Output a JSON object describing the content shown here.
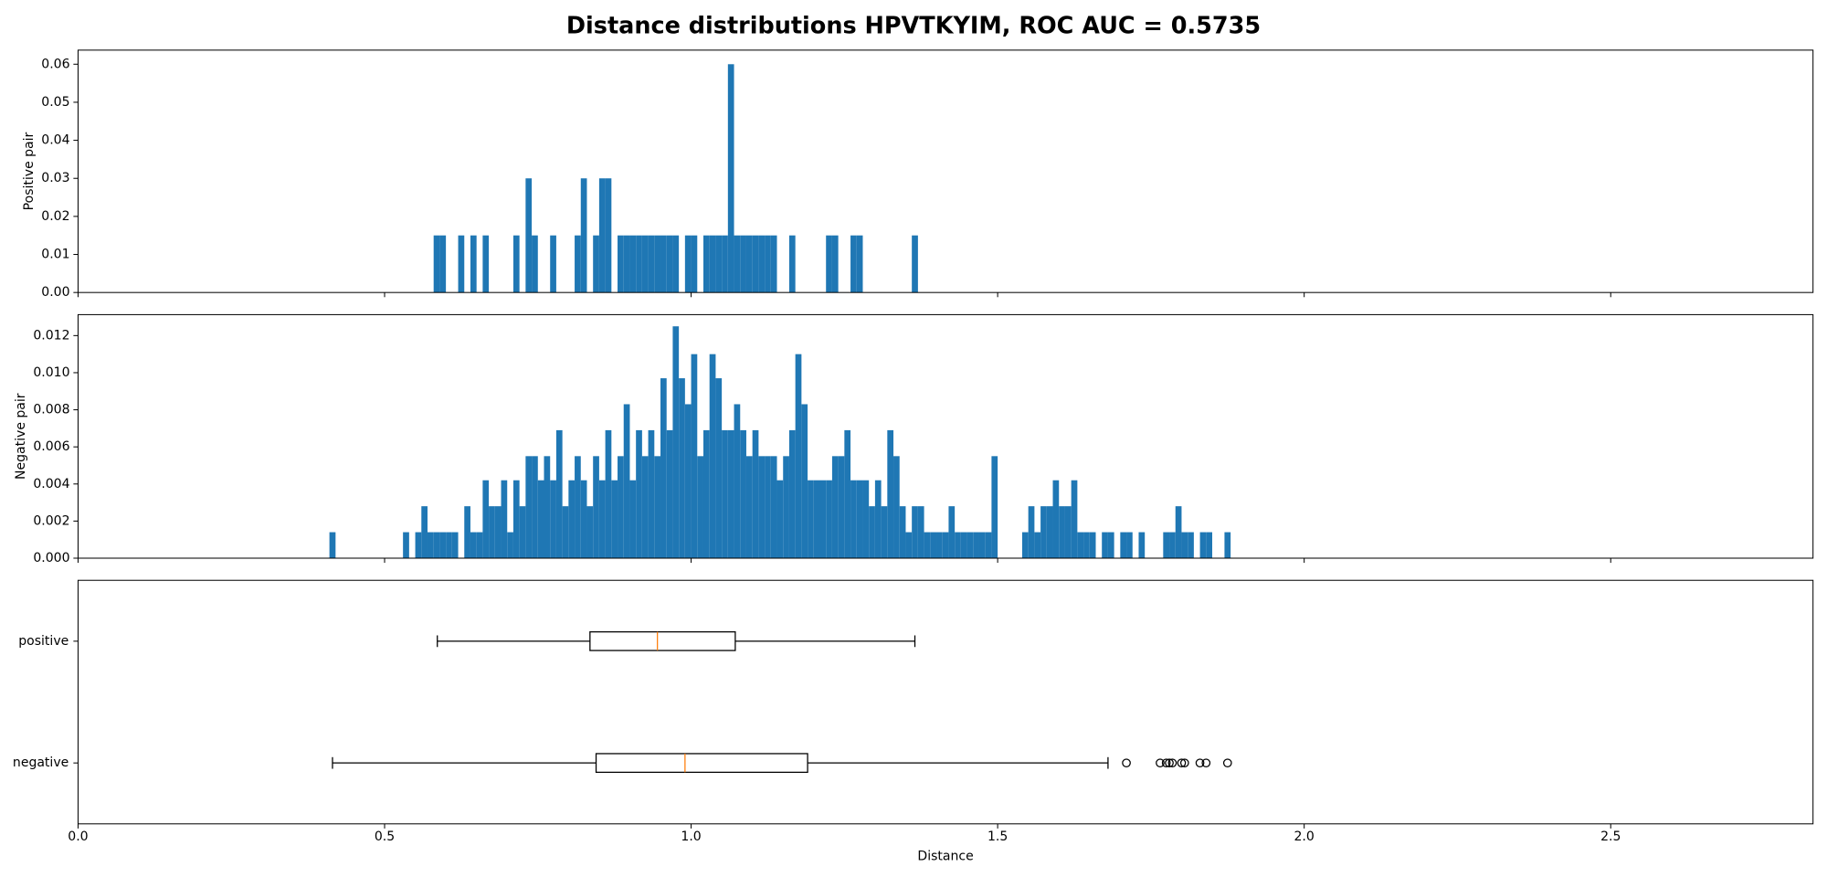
{
  "title": "Distance distributions HPVTKYIM, ROC AUC = 0.5735",
  "chart_data": [
    {
      "type": "histogram",
      "ylabel": "Positive pair",
      "color": "#1f77b4",
      "xlim": [
        0,
        2.83
      ],
      "ylim": [
        0,
        0.0637
      ],
      "yticks": [
        {
          "value": 0,
          "label": "0.00"
        },
        {
          "value": 0.01,
          "label": "0.01"
        },
        {
          "value": 0.02,
          "label": "0.02"
        },
        {
          "value": 0.03,
          "label": "0.03"
        },
        {
          "value": 0.04,
          "label": "0.04"
        },
        {
          "value": 0.05,
          "label": "0.05"
        },
        {
          "value": 0.06,
          "label": "0.06"
        }
      ],
      "bins": [
        0.58,
        0.59,
        0.6,
        0.61,
        0.62,
        0.63,
        0.64,
        0.65,
        0.66,
        0.67,
        0.68,
        0.69,
        0.7,
        0.71,
        0.72,
        0.73,
        0.74,
        0.75,
        0.76,
        0.77,
        0.78,
        0.79,
        0.8,
        0.81,
        0.82,
        0.83,
        0.84,
        0.85,
        0.86,
        0.87,
        0.88,
        0.89,
        0.9,
        0.91,
        0.92,
        0.93,
        0.94,
        0.95,
        0.96,
        0.97,
        0.98,
        0.99,
        1.0,
        1.01,
        1.02,
        1.03,
        1.04,
        1.05,
        1.06,
        1.07,
        1.08,
        1.09,
        1.1,
        1.11,
        1.12,
        1.13,
        1.14,
        1.15,
        1.16,
        1.17,
        1.18,
        1.19,
        1.2,
        1.21,
        1.22,
        1.23,
        1.24,
        1.25,
        1.26,
        1.27,
        1.28,
        1.29,
        1.3,
        1.31,
        1.32,
        1.33,
        1.34,
        1.35,
        1.36,
        1.37,
        1.38
      ],
      "values": [
        0.015,
        0.015,
        0,
        0,
        0.015,
        0,
        0.015,
        0,
        0.015,
        0,
        0,
        0,
        0,
        0.015,
        0,
        0.03,
        0.015,
        0,
        0,
        0.015,
        0,
        0,
        0,
        0.015,
        0.03,
        0,
        0.015,
        0.03,
        0.03,
        0,
        0.015,
        0.015,
        0.015,
        0.015,
        0.015,
        0.015,
        0.015,
        0.015,
        0.015,
        0.015,
        0,
        0.015,
        0.015,
        0,
        0.015,
        0.015,
        0.015,
        0.015,
        0.06,
        0.015,
        0.015,
        0.015,
        0.015,
        0.015,
        0.015,
        0.015,
        0,
        0,
        0.015,
        0,
        0,
        0,
        0,
        0,
        0.015,
        0.015,
        0,
        0,
        0.015,
        0.015,
        0,
        0,
        0,
        0,
        0,
        0,
        0,
        0,
        0.015,
        0
      ]
    },
    {
      "type": "histogram",
      "ylabel": "Negative pair",
      "color": "#1f77b4",
      "xlim": [
        0,
        2.83
      ],
      "ylim": [
        0,
        0.01313
      ],
      "yticks": [
        {
          "value": 0,
          "label": "0.000"
        },
        {
          "value": 0.002,
          "label": "0.002"
        },
        {
          "value": 0.004,
          "label": "0.004"
        },
        {
          "value": 0.006,
          "label": "0.006"
        },
        {
          "value": 0.008,
          "label": "0.008"
        },
        {
          "value": 0.01,
          "label": "0.010"
        },
        {
          "value": 0.012,
          "label": "0.012"
        }
      ],
      "bins": [
        0.4,
        0.41,
        0.42,
        0.43,
        0.44,
        0.45,
        0.46,
        0.47,
        0.48,
        0.49,
        0.5,
        0.51,
        0.52,
        0.53,
        0.54,
        0.55,
        0.56,
        0.57,
        0.58,
        0.59,
        0.6,
        0.61,
        0.62,
        0.63,
        0.64,
        0.65,
        0.66,
        0.67,
        0.68,
        0.69,
        0.7,
        0.71,
        0.72,
        0.73,
        0.74,
        0.75,
        0.76,
        0.77,
        0.78,
        0.79,
        0.8,
        0.81,
        0.82,
        0.83,
        0.84,
        0.85,
        0.86,
        0.87,
        0.88,
        0.89,
        0.9,
        0.91,
        0.92,
        0.93,
        0.94,
        0.95,
        0.96,
        0.97,
        0.98,
        0.99,
        1.0,
        1.01,
        1.02,
        1.03,
        1.04,
        1.05,
        1.06,
        1.07,
        1.08,
        1.09,
        1.1,
        1.11,
        1.12,
        1.13,
        1.14,
        1.15,
        1.16,
        1.17,
        1.18,
        1.19,
        1.2,
        1.21,
        1.22,
        1.23,
        1.24,
        1.25,
        1.26,
        1.27,
        1.28,
        1.29,
        1.3,
        1.31,
        1.32,
        1.33,
        1.34,
        1.35,
        1.36,
        1.37,
        1.38,
        1.39,
        1.4,
        1.41,
        1.42,
        1.43,
        1.44,
        1.45,
        1.46,
        1.47,
        1.48,
        1.49,
        1.5,
        1.51,
        1.52,
        1.53,
        1.54,
        1.55,
        1.56,
        1.57,
        1.58,
        1.59,
        1.6,
        1.61,
        1.62,
        1.63,
        1.64,
        1.65,
        1.66,
        1.67,
        1.68,
        1.69,
        1.7,
        1.71,
        1.72,
        1.73,
        1.74,
        1.75,
        1.76,
        1.77,
        1.78,
        1.79,
        1.8,
        1.81,
        1.82,
        1.83,
        1.84,
        1.85,
        1.86,
        1.87,
        1.88,
        1.89,
        1.9
      ],
      "values": [
        0,
        0.0014,
        0,
        0,
        0,
        0,
        0,
        0,
        0,
        0,
        0,
        0,
        0,
        0.0014,
        0,
        0.0014,
        0.0028,
        0.0014,
        0.0014,
        0.0014,
        0.0014,
        0.0014,
        0,
        0.0028,
        0.0014,
        0.0014,
        0.0042,
        0.0028,
        0.0028,
        0.0042,
        0.0014,
        0.0042,
        0.0028,
        0.0055,
        0.0055,
        0.0042,
        0.0055,
        0.0042,
        0.0069,
        0.0028,
        0.0042,
        0.0055,
        0.0042,
        0.0028,
        0.0055,
        0.0042,
        0.0069,
        0.0042,
        0.0055,
        0.0083,
        0.0042,
        0.0069,
        0.0055,
        0.0069,
        0.0055,
        0.0097,
        0.0069,
        0.0125,
        0.0097,
        0.0083,
        0.011,
        0.0055,
        0.0069,
        0.011,
        0.0097,
        0.0069,
        0.0069,
        0.0083,
        0.0069,
        0.0055,
        0.0069,
        0.0055,
        0.0055,
        0.0055,
        0.0042,
        0.0055,
        0.0069,
        0.011,
        0.0083,
        0.0042,
        0.0042,
        0.0042,
        0.0042,
        0.0055,
        0.0055,
        0.0069,
        0.0042,
        0.0042,
        0.0042,
        0.0028,
        0.0042,
        0.0028,
        0.0069,
        0.0055,
        0.0028,
        0.0014,
        0.0028,
        0.0028,
        0.0014,
        0.0014,
        0.0014,
        0.0014,
        0.0028,
        0.0014,
        0.0014,
        0.0014,
        0.0014,
        0.0014,
        0.0014,
        0.0055,
        0,
        0,
        0,
        0,
        0.0014,
        0.0028,
        0.0014,
        0.0028,
        0.0028,
        0.0042,
        0.0028,
        0.0028,
        0.0042,
        0.0014,
        0.0014,
        0.0014,
        0,
        0.0014,
        0.0014,
        0,
        0.0014,
        0.0014,
        0,
        0.0014,
        0,
        0,
        0,
        0.0014,
        0.0014,
        0.0028,
        0.0014,
        0.0014,
        0,
        0.0014,
        0.0014,
        0,
        0,
        0.0014,
        0,
        0
      ]
    },
    {
      "type": "boxplot",
      "xlabel": "Distance",
      "median_color": "#ff7f0e",
      "xlim": [
        0,
        2.83
      ],
      "xticks": [
        {
          "value": 0,
          "label": "0.0"
        },
        {
          "value": 0.5,
          "label": "0.5"
        },
        {
          "value": 1,
          "label": "1.0"
        },
        {
          "value": 1.5,
          "label": "1.5"
        },
        {
          "value": 2,
          "label": "2.0"
        },
        {
          "value": 2.5,
          "label": "2.5"
        }
      ],
      "boxes": [
        {
          "name": "positive",
          "whislo": 0.586,
          "q1": 0.835,
          "med": 0.945,
          "q3": 1.072,
          "whishi": 1.365,
          "fliers": []
        },
        {
          "name": "negative",
          "whislo": 0.415,
          "q1": 0.845,
          "med": 0.99,
          "q3": 1.19,
          "whishi": 1.68,
          "fliers": [
            1.71,
            1.765,
            1.775,
            1.78,
            1.785,
            1.8,
            1.805,
            1.83,
            1.84,
            1.875
          ]
        }
      ]
    }
  ]
}
